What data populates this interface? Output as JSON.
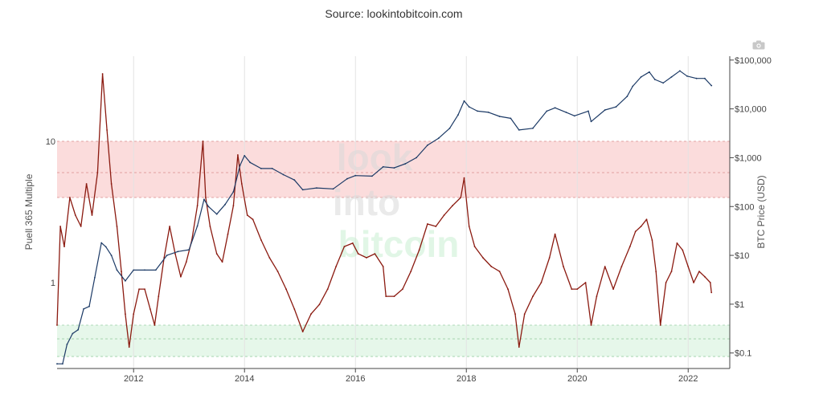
{
  "header": {
    "source": "Source: lookintobitcoin.com"
  },
  "watermark": {
    "line1": "look",
    "line2": "into",
    "line3": "bitcoin"
  },
  "toolbar": {
    "camera_icon": "camera-icon"
  },
  "chart_data": {
    "type": "line",
    "title": "",
    "xlabel": "",
    "ylabel_left": "Puell 365 Multiple",
    "ylabel_right": "BTC Price (USD)",
    "xlim": [
      2010.62,
      2022.75
    ],
    "ylim_left": [
      0.25,
      40
    ],
    "ylim_right": [
      0.05,
      120000
    ],
    "scale": "log",
    "grid": true,
    "x_ticks": [
      2012,
      2014,
      2016,
      2018,
      2020,
      2022
    ],
    "x_tick_labels": [
      "2012",
      "2014",
      "2016",
      "2018",
      "2020",
      "2022"
    ],
    "y_ticks_left": [
      1,
      10
    ],
    "y_tick_labels_left": [
      "1",
      "10"
    ],
    "y_ticks_right": [
      0.1,
      1,
      10,
      100,
      1000,
      10000,
      100000
    ],
    "y_tick_labels_right": [
      "$0.1",
      "$1",
      "$10",
      "$100",
      "$1,000",
      "$10,000",
      "$100,000"
    ],
    "bands": [
      {
        "name": "overvalued",
        "from": 4,
        "to": 10,
        "color": "#fbdcdc",
        "border": "#d98c8c"
      },
      {
        "name": "undervalued",
        "from": 0.3,
        "to": 0.5,
        "color": "#e6f7ea",
        "border": "#9bcfa6"
      }
    ],
    "inner_dotted_lines": [
      6,
      0.4
    ],
    "colors": {
      "price": "#1c3a66",
      "puell": "#8b1a10"
    },
    "series": [
      {
        "axis": "right",
        "x": [
          2010.62,
          2010.72,
          2010.8,
          2010.9,
          2011.0,
          2011.1,
          2011.2,
          2011.3,
          2011.42,
          2011.5,
          2011.6,
          2011.7,
          2011.85,
          2012.0,
          2012.2,
          2012.4,
          2012.6,
          2012.8,
          2013.0,
          2013.15,
          2013.27,
          2013.35,
          2013.5,
          2013.65,
          2013.8,
          2013.92,
          2014.0,
          2014.1,
          2014.3,
          2014.5,
          2014.7,
          2014.9,
          2015.05,
          2015.3,
          2015.6,
          2015.85,
          2016.0,
          2016.3,
          2016.5,
          2016.7,
          2016.9,
          2017.1,
          2017.3,
          2017.5,
          2017.7,
          2017.85,
          2017.96,
          2018.05,
          2018.2,
          2018.4,
          2018.6,
          2018.8,
          2018.95,
          2019.2,
          2019.45,
          2019.6,
          2019.8,
          2019.95,
          2020.2,
          2020.25,
          2020.5,
          2020.7,
          2020.9,
          2021.0,
          2021.15,
          2021.3,
          2021.4,
          2021.55,
          2021.7,
          2021.85,
          2021.98,
          2022.15,
          2022.3,
          2022.42
        ],
        "values": [
          0.06,
          0.06,
          0.15,
          0.25,
          0.3,
          0.8,
          0.9,
          3.5,
          18,
          15,
          10,
          5,
          3,
          5,
          5,
          5,
          10,
          12,
          13,
          40,
          140,
          100,
          70,
          110,
          200,
          700,
          1100,
          800,
          600,
          600,
          450,
          350,
          220,
          240,
          230,
          370,
          430,
          420,
          650,
          620,
          750,
          1000,
          1800,
          2500,
          4000,
          7500,
          14500,
          11000,
          9000,
          8500,
          7000,
          6400,
          3700,
          4000,
          9000,
          10500,
          8500,
          7200,
          9000,
          5500,
          9500,
          11000,
          18000,
          29000,
          45000,
          57000,
          40000,
          34000,
          45000,
          60000,
          47000,
          42000,
          42000,
          30000
        ]
      },
      {
        "axis": "left",
        "x": [
          2010.62,
          2010.68,
          2010.75,
          2010.85,
          2010.95,
          2011.05,
          2011.15,
          2011.25,
          2011.35,
          2011.44,
          2011.52,
          2011.6,
          2011.7,
          2011.78,
          2011.85,
          2011.92,
          2012.0,
          2012.1,
          2012.2,
          2012.3,
          2012.38,
          2012.45,
          2012.55,
          2012.65,
          2012.75,
          2012.85,
          2012.95,
          2013.05,
          2013.15,
          2013.25,
          2013.3,
          2013.38,
          2013.5,
          2013.6,
          2013.7,
          2013.8,
          2013.88,
          2013.95,
          2014.05,
          2014.15,
          2014.3,
          2014.45,
          2014.6,
          2014.75,
          2014.9,
          2015.05,
          2015.2,
          2015.35,
          2015.5,
          2015.65,
          2015.8,
          2015.95,
          2016.05,
          2016.2,
          2016.35,
          2016.5,
          2016.55,
          2016.7,
          2016.85,
          2017.0,
          2017.15,
          2017.3,
          2017.45,
          2017.6,
          2017.75,
          2017.9,
          2017.96,
          2018.05,
          2018.15,
          2018.3,
          2018.45,
          2018.6,
          2018.75,
          2018.88,
          2018.95,
          2019.05,
          2019.2,
          2019.35,
          2019.5,
          2019.6,
          2019.75,
          2019.9,
          2020.0,
          2020.15,
          2020.25,
          2020.35,
          2020.5,
          2020.65,
          2020.8,
          2020.95,
          2021.05,
          2021.15,
          2021.25,
          2021.35,
          2021.42,
          2021.5,
          2021.6,
          2021.7,
          2021.8,
          2021.9,
          2022.0,
          2022.1,
          2022.2,
          2022.3,
          2022.4,
          2022.42
        ],
        "values": [
          0.5,
          2.5,
          1.8,
          4,
          3,
          2.5,
          5,
          3,
          6,
          30,
          12,
          5,
          2.5,
          1.2,
          0.6,
          0.35,
          0.6,
          0.9,
          0.9,
          0.65,
          0.5,
          0.8,
          1.5,
          2.5,
          1.6,
          1.1,
          1.4,
          2,
          3.5,
          10,
          4,
          2.5,
          1.6,
          1.4,
          2.2,
          3.5,
          8,
          5,
          3,
          2.8,
          2,
          1.5,
          1.2,
          0.9,
          0.65,
          0.45,
          0.6,
          0.7,
          0.9,
          1.3,
          1.8,
          1.9,
          1.6,
          1.5,
          1.6,
          1.3,
          0.8,
          0.8,
          0.9,
          1.2,
          1.7,
          2.6,
          2.5,
          3,
          3.5,
          4,
          5.5,
          2.5,
          1.8,
          1.5,
          1.3,
          1.2,
          0.9,
          0.6,
          0.35,
          0.6,
          0.8,
          1.0,
          1.5,
          2.2,
          1.3,
          0.9,
          0.9,
          1.0,
          0.5,
          0.8,
          1.3,
          0.9,
          1.3,
          1.8,
          2.3,
          2.5,
          2.8,
          2.0,
          1.2,
          0.5,
          1.0,
          1.2,
          1.9,
          1.7,
          1.3,
          1.0,
          1.2,
          1.1,
          1.0,
          0.85
        ]
      }
    ]
  }
}
